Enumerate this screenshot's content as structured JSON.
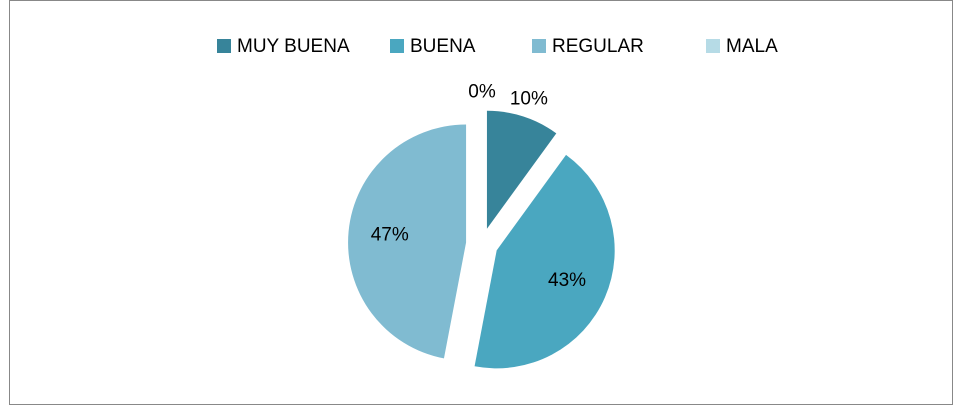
{
  "chart_data": {
    "type": "pie",
    "categories": [
      "MUY BUENA",
      "BUENA",
      "REGULAR",
      "MALA"
    ],
    "values": [
      10,
      43,
      47,
      0
    ],
    "value_labels": [
      "10%",
      "43%",
      "47%",
      "0%"
    ],
    "colors": [
      "#37849a",
      "#4aa7c0",
      "#80bbd1",
      "#b6dbe6"
    ],
    "legend": "top"
  }
}
